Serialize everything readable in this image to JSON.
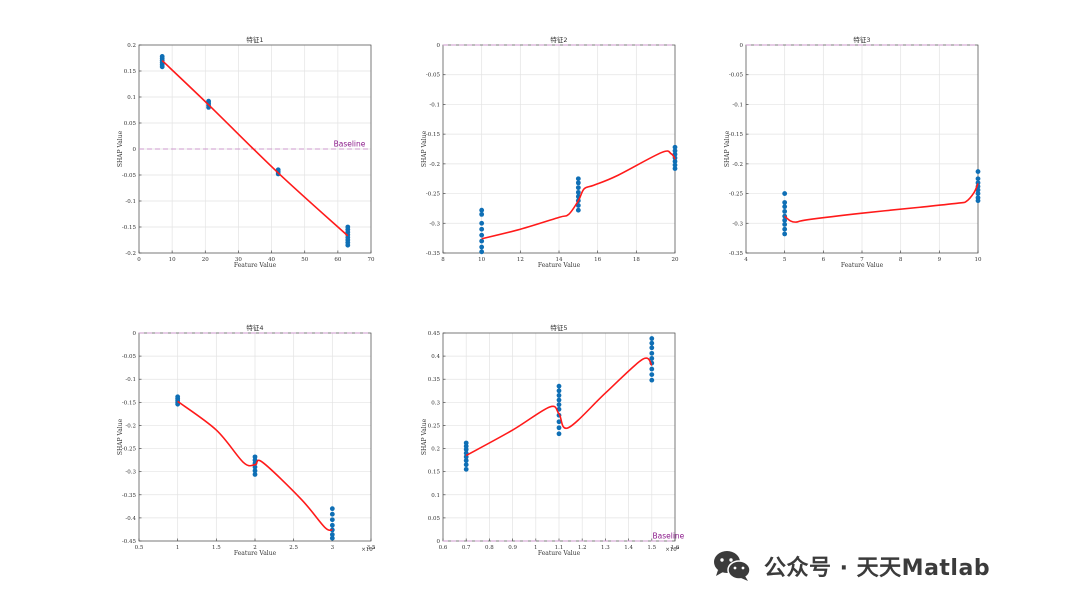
{
  "colors": {
    "point": "#0f6fb5",
    "curve": "#ff1a1a",
    "baseline_line": "#cc99cc",
    "baseline_text": "#8a1a8a",
    "grid": "#e3e3e3",
    "axis": "#4a4a4a",
    "bg": "#ffffff"
  },
  "watermark": {
    "text": "公众号 · 天天Matlab",
    "icon": "wechat-icon"
  },
  "chart_data": [
    {
      "type": "scatter",
      "title": "特征1",
      "xlabel": "Feature Value",
      "ylabel": "SHAP Value",
      "xlim": [
        0,
        70
      ],
      "ylim": [
        -0.2,
        0.2
      ],
      "xticks": [
        0,
        10,
        20,
        30,
        40,
        50,
        60,
        70
      ],
      "xtick_labels": [
        "0",
        "10",
        "20",
        "30",
        "40",
        "50",
        "60",
        "70"
      ],
      "yticks": [
        -0.2,
        -0.15,
        -0.1,
        -0.05,
        0,
        0.05,
        0.1,
        0.15,
        0.2
      ],
      "ytick_labels": [
        "-0.2",
        "-0.15",
        "-0.1",
        "-0.05",
        "0",
        "0.05",
        "0.1",
        "0.15",
        "0.2"
      ],
      "xexp": "",
      "baseline": {
        "y": 0,
        "label": "Baseline",
        "label_x": 62
      },
      "points": [
        [
          7,
          0.178
        ],
        [
          7,
          0.174
        ],
        [
          7,
          0.17
        ],
        [
          7,
          0.166
        ],
        [
          7,
          0.162
        ],
        [
          7,
          0.158
        ],
        [
          21,
          0.092
        ],
        [
          21,
          0.088
        ],
        [
          21,
          0.084
        ],
        [
          21,
          0.08
        ],
        [
          42,
          -0.04
        ],
        [
          42,
          -0.044
        ],
        [
          42,
          -0.048
        ],
        [
          63,
          -0.15
        ],
        [
          63,
          -0.155
        ],
        [
          63,
          -0.16
        ],
        [
          63,
          -0.165
        ],
        [
          63,
          -0.17
        ],
        [
          63,
          -0.175
        ],
        [
          63,
          -0.18
        ],
        [
          63,
          -0.185
        ]
      ],
      "curve": [
        [
          7,
          0.17
        ],
        [
          21,
          0.085
        ],
        [
          42,
          -0.046
        ],
        [
          63,
          -0.167
        ]
      ]
    },
    {
      "type": "scatter",
      "title": "特征2",
      "xlabel": "Feature Value",
      "ylabel": "SHAP Value",
      "xlim": [
        8,
        20
      ],
      "ylim": [
        -0.35,
        0
      ],
      "xticks": [
        8,
        10,
        12,
        14,
        16,
        18,
        20
      ],
      "xtick_labels": [
        "8",
        "10",
        "12",
        "14",
        "16",
        "18",
        "20"
      ],
      "yticks": [
        -0.35,
        -0.3,
        -0.25,
        -0.2,
        -0.15,
        -0.1,
        -0.05,
        0
      ],
      "ytick_labels": [
        "-0.35",
        "-0.3",
        "-0.25",
        "-0.2",
        "-0.15",
        "-0.1",
        "-0.05",
        "0"
      ],
      "xexp": "",
      "baseline": {
        "y": 0,
        "label": "",
        "label_x": 0
      },
      "points": [
        [
          10,
          -0.278
        ],
        [
          10,
          -0.285
        ],
        [
          10,
          -0.3
        ],
        [
          10,
          -0.31
        ],
        [
          10,
          -0.32
        ],
        [
          10,
          -0.33
        ],
        [
          10,
          -0.34
        ],
        [
          10,
          -0.348
        ],
        [
          15,
          -0.225
        ],
        [
          15,
          -0.232
        ],
        [
          15,
          -0.24
        ],
        [
          15,
          -0.248
        ],
        [
          15,
          -0.255
        ],
        [
          15,
          -0.262
        ],
        [
          15,
          -0.27
        ],
        [
          15,
          -0.278
        ],
        [
          20,
          -0.172
        ],
        [
          20,
          -0.178
        ],
        [
          20,
          -0.184
        ],
        [
          20,
          -0.19
        ],
        [
          20,
          -0.196
        ],
        [
          20,
          -0.202
        ],
        [
          20,
          -0.208
        ]
      ],
      "curve": [
        [
          10,
          -0.326
        ],
        [
          12,
          -0.31
        ],
        [
          14,
          -0.29
        ],
        [
          14.5,
          -0.285
        ],
        [
          15,
          -0.262
        ],
        [
          15.3,
          -0.242
        ],
        [
          15.8,
          -0.236
        ],
        [
          17,
          -0.22
        ],
        [
          19.3,
          -0.181
        ],
        [
          19.8,
          -0.183
        ],
        [
          20,
          -0.192
        ]
      ]
    },
    {
      "type": "scatter",
      "title": "特征3",
      "xlabel": "Feature Value",
      "ylabel": "SHAP Value",
      "xlim": [
        4,
        10
      ],
      "ylim": [
        -0.35,
        0
      ],
      "xticks": [
        4,
        5,
        6,
        7,
        8,
        9,
        10
      ],
      "xtick_labels": [
        "4",
        "5",
        "6",
        "7",
        "8",
        "9",
        "10"
      ],
      "yticks": [
        -0.35,
        -0.3,
        -0.25,
        -0.2,
        -0.15,
        -0.1,
        -0.05,
        0
      ],
      "ytick_labels": [
        "-0.35",
        "-0.3",
        "-0.25",
        "-0.2",
        "-0.15",
        "-0.1",
        "-0.05",
        "0"
      ],
      "xexp": "",
      "baseline": {
        "y": 0,
        "label": "",
        "label_x": 0
      },
      "points": [
        [
          5,
          -0.25
        ],
        [
          5,
          -0.265
        ],
        [
          5,
          -0.272
        ],
        [
          5,
          -0.28
        ],
        [
          5,
          -0.288
        ],
        [
          5,
          -0.295
        ],
        [
          5,
          -0.302
        ],
        [
          5,
          -0.31
        ],
        [
          5,
          -0.318
        ],
        [
          10,
          -0.213
        ],
        [
          10,
          -0.225
        ],
        [
          10,
          -0.232
        ],
        [
          10,
          -0.238
        ],
        [
          10,
          -0.244
        ],
        [
          10,
          -0.25
        ],
        [
          10,
          -0.257
        ],
        [
          10,
          -0.262
        ]
      ],
      "curve": [
        [
          5,
          -0.288
        ],
        [
          5.15,
          -0.296
        ],
        [
          5.3,
          -0.298
        ],
        [
          5.6,
          -0.294
        ],
        [
          7,
          -0.283
        ],
        [
          8.5,
          -0.273
        ],
        [
          9.5,
          -0.266
        ],
        [
          9.7,
          -0.263
        ],
        [
          9.9,
          -0.248
        ],
        [
          10,
          -0.233
        ]
      ]
    },
    {
      "type": "scatter",
      "title": "特征4",
      "xlabel": "Feature Value",
      "ylabel": "SHAP Value",
      "xlim": [
        0.5,
        3.5
      ],
      "ylim": [
        -0.45,
        0
      ],
      "xticks": [
        0.5,
        1,
        1.5,
        2,
        2.5,
        3,
        3.5
      ],
      "xtick_labels": [
        "0.5",
        "1",
        "1.5",
        "2",
        "2.5",
        "3",
        "3.5"
      ],
      "yticks": [
        -0.45,
        -0.4,
        -0.35,
        -0.3,
        -0.25,
        -0.2,
        -0.15,
        -0.1,
        -0.05,
        0
      ],
      "ytick_labels": [
        "-0.45",
        "-0.4",
        "-0.35",
        "-0.3",
        "-0.25",
        "-0.2",
        "-0.15",
        "-0.1",
        "-0.05",
        "0"
      ],
      "xexp": "×10⁴",
      "baseline": {
        "y": 0,
        "label": "",
        "label_x": 0
      },
      "points": [
        [
          1,
          -0.138
        ],
        [
          1,
          -0.142
        ],
        [
          1,
          -0.146
        ],
        [
          1,
          -0.15
        ],
        [
          1,
          -0.154
        ],
        [
          2,
          -0.268
        ],
        [
          2,
          -0.275
        ],
        [
          2,
          -0.282
        ],
        [
          2,
          -0.29
        ],
        [
          2,
          -0.298
        ],
        [
          2,
          -0.306
        ],
        [
          3,
          -0.38
        ],
        [
          3,
          -0.392
        ],
        [
          3,
          -0.404
        ],
        [
          3,
          -0.416
        ],
        [
          3,
          -0.426
        ],
        [
          3,
          -0.436
        ],
        [
          3,
          -0.444
        ]
      ],
      "curve": [
        [
          1,
          -0.148
        ],
        [
          1.5,
          -0.21
        ],
        [
          1.85,
          -0.28
        ],
        [
          2,
          -0.285
        ],
        [
          2.1,
          -0.28
        ],
        [
          2.6,
          -0.36
        ],
        [
          2.9,
          -0.42
        ],
        [
          3,
          -0.426
        ]
      ]
    },
    {
      "type": "scatter",
      "title": "特征5",
      "xlabel": "Feature Value",
      "ylabel": "SHAP Value",
      "xlim": [
        0.6,
        1.6
      ],
      "ylim": [
        0,
        0.45
      ],
      "xticks": [
        0.6,
        0.7,
        0.8,
        0.9,
        1,
        1.1,
        1.2,
        1.3,
        1.4,
        1.5,
        1.6
      ],
      "xtick_labels": [
        "0.6",
        "0.7",
        "0.8",
        "0.9",
        "1",
        "1.1",
        "1.2",
        "1.3",
        "1.4",
        "1.5",
        "1.6"
      ],
      "yticks": [
        0,
        0.05,
        0.1,
        0.15,
        0.2,
        0.25,
        0.3,
        0.35,
        0.4,
        0.45
      ],
      "ytick_labels": [
        "0",
        "0.05",
        "0.1",
        "0.15",
        "0.2",
        "0.25",
        "0.3",
        "0.35",
        "0.4",
        "0.45"
      ],
      "xexp": "×10⁴",
      "baseline": {
        "y": 0,
        "label": "Baseline",
        "label_x": 1.55
      },
      "points": [
        [
          0.7,
          0.212
        ],
        [
          0.7,
          0.205
        ],
        [
          0.7,
          0.198
        ],
        [
          0.7,
          0.19
        ],
        [
          0.7,
          0.182
        ],
        [
          0.7,
          0.174
        ],
        [
          0.7,
          0.165
        ],
        [
          0.7,
          0.155
        ],
        [
          1.1,
          0.335
        ],
        [
          1.1,
          0.325
        ],
        [
          1.1,
          0.315
        ],
        [
          1.1,
          0.305
        ],
        [
          1.1,
          0.295
        ],
        [
          1.1,
          0.285
        ],
        [
          1.1,
          0.272
        ],
        [
          1.1,
          0.258
        ],
        [
          1.1,
          0.245
        ],
        [
          1.1,
          0.232
        ],
        [
          1.5,
          0.438
        ],
        [
          1.5,
          0.428
        ],
        [
          1.5,
          0.418
        ],
        [
          1.5,
          0.406
        ],
        [
          1.5,
          0.395
        ],
        [
          1.5,
          0.385
        ],
        [
          1.5,
          0.372
        ],
        [
          1.5,
          0.36
        ],
        [
          1.5,
          0.348
        ]
      ],
      "curve": [
        [
          0.7,
          0.185
        ],
        [
          0.9,
          0.24
        ],
        [
          1.06,
          0.29
        ],
        [
          1.1,
          0.275
        ],
        [
          1.14,
          0.245
        ],
        [
          1.3,
          0.32
        ],
        [
          1.46,
          0.393
        ],
        [
          1.5,
          0.38
        ]
      ]
    }
  ]
}
